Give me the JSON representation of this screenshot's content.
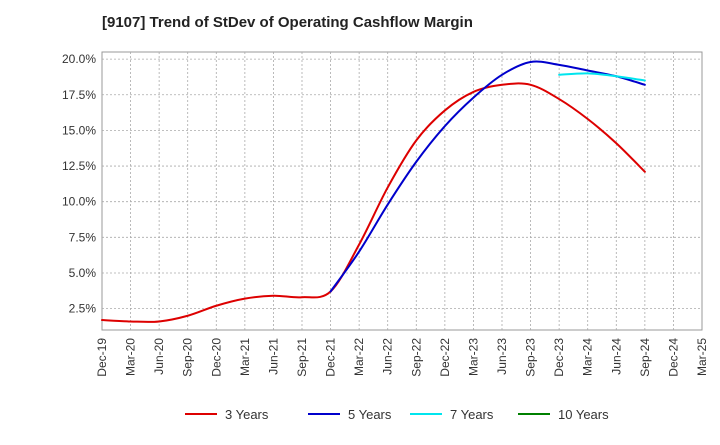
{
  "chart_data": {
    "type": "line",
    "title": "[9107]  Trend of StDev of Operating Cashflow Margin",
    "xlabel": "",
    "ylabel": "",
    "ylim": [
      1.0,
      20.5
    ],
    "y_ticks": [
      2.5,
      5.0,
      7.5,
      10.0,
      12.5,
      15.0,
      17.5,
      20.0
    ],
    "y_tick_labels": [
      "2.5%",
      "5.0%",
      "7.5%",
      "10.0%",
      "12.5%",
      "15.0%",
      "17.5%",
      "20.0%"
    ],
    "x_tick_labels": [
      "Dec-19",
      "Mar-20",
      "Jun-20",
      "Sep-20",
      "Dec-20",
      "Mar-21",
      "Jun-21",
      "Sep-21",
      "Dec-21",
      "Mar-22",
      "Jun-22",
      "Sep-22",
      "Dec-22",
      "Mar-23",
      "Jun-23",
      "Sep-23",
      "Dec-23",
      "Mar-24",
      "Jun-24",
      "Sep-24",
      "Dec-24",
      "Mar-25"
    ],
    "grid": true,
    "legend_position": "bottom",
    "series": [
      {
        "name": "3 Years",
        "color": "#dd0000",
        "values": [
          1.7,
          1.6,
          1.6,
          2.0,
          2.7,
          3.2,
          3.4,
          3.3,
          3.7,
          7.0,
          11.0,
          14.3,
          16.4,
          17.7,
          18.2,
          18.2,
          17.2,
          15.8,
          14.1,
          12.1,
          null,
          null
        ]
      },
      {
        "name": "5 Years",
        "color": "#0000cc",
        "values": [
          null,
          null,
          null,
          null,
          null,
          null,
          null,
          null,
          3.7,
          6.5,
          9.8,
          12.8,
          15.3,
          17.3,
          18.9,
          19.8,
          19.6,
          19.2,
          18.8,
          18.2,
          null,
          null
        ]
      },
      {
        "name": "7 Years",
        "color": "#00e5ee",
        "values": [
          null,
          null,
          null,
          null,
          null,
          null,
          null,
          null,
          null,
          null,
          null,
          null,
          null,
          null,
          null,
          null,
          18.9,
          19.0,
          18.8,
          18.5,
          null,
          null
        ]
      },
      {
        "name": "10 Years",
        "color": "#008000",
        "values": [
          null,
          null,
          null,
          null,
          null,
          null,
          null,
          null,
          null,
          null,
          null,
          null,
          null,
          null,
          null,
          null,
          null,
          null,
          null,
          null,
          null,
          null
        ]
      }
    ]
  }
}
